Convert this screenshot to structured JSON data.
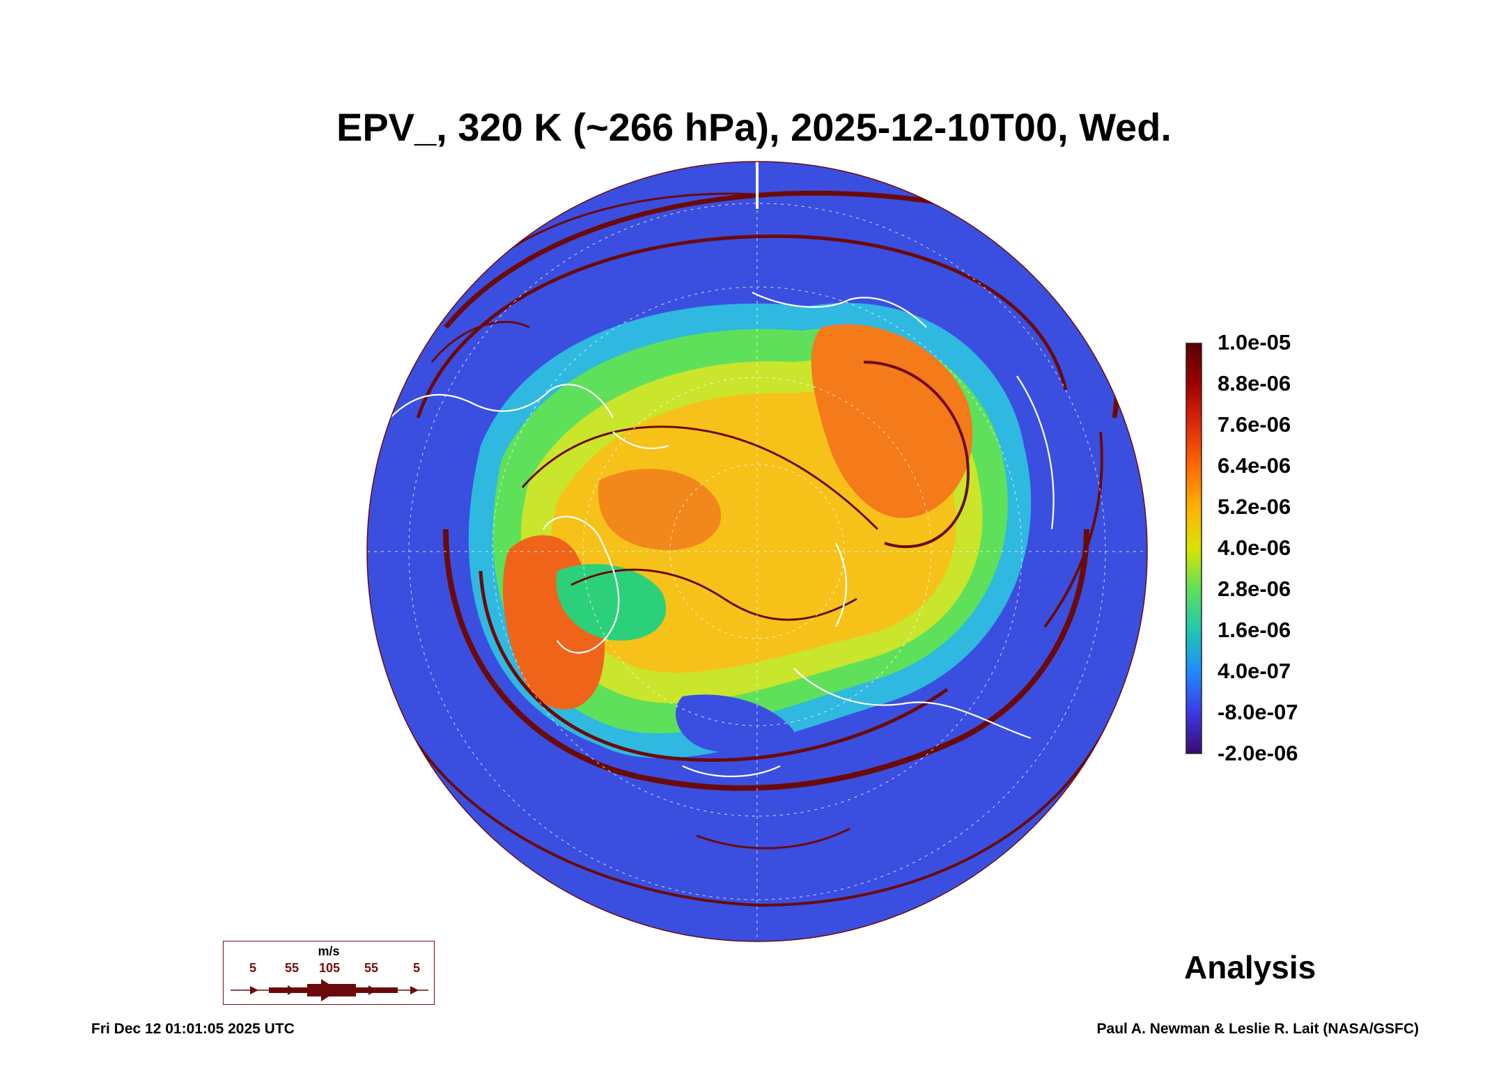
{
  "title": "EPV_, 320 K (~266 hPa), 2025-12-10T00, Wed.",
  "colorbar": {
    "labels": [
      "1.0e-05",
      "8.8e-06",
      "7.6e-06",
      "6.4e-06",
      "5.2e-06",
      "4.0e-06",
      "2.8e-06",
      "1.6e-06",
      "4.0e-07",
      "-8.0e-07",
      "-2.0e-06"
    ],
    "colors": [
      "#6b0000",
      "#b30000",
      "#e8250a",
      "#ff6a00",
      "#ffb300",
      "#d7e600",
      "#5fe05a",
      "#1fc8a8",
      "#1e8cff",
      "#3a3ae8",
      "#4b0a8c"
    ]
  },
  "wind_legend": {
    "unit": "m/s",
    "values": [
      "5",
      "55",
      "105",
      "55",
      "5"
    ]
  },
  "label": "Analysis",
  "footer": {
    "timestamp": "Fri Dec 12 01:01:05 2025 UTC",
    "credit": "Paul A. Newman & Leslie R. Lait (NASA/GSFC)"
  },
  "map_colors": {
    "background_low": "#3a4fe0",
    "streamline": "#6b0a0a",
    "coastline": "#ffffff"
  }
}
